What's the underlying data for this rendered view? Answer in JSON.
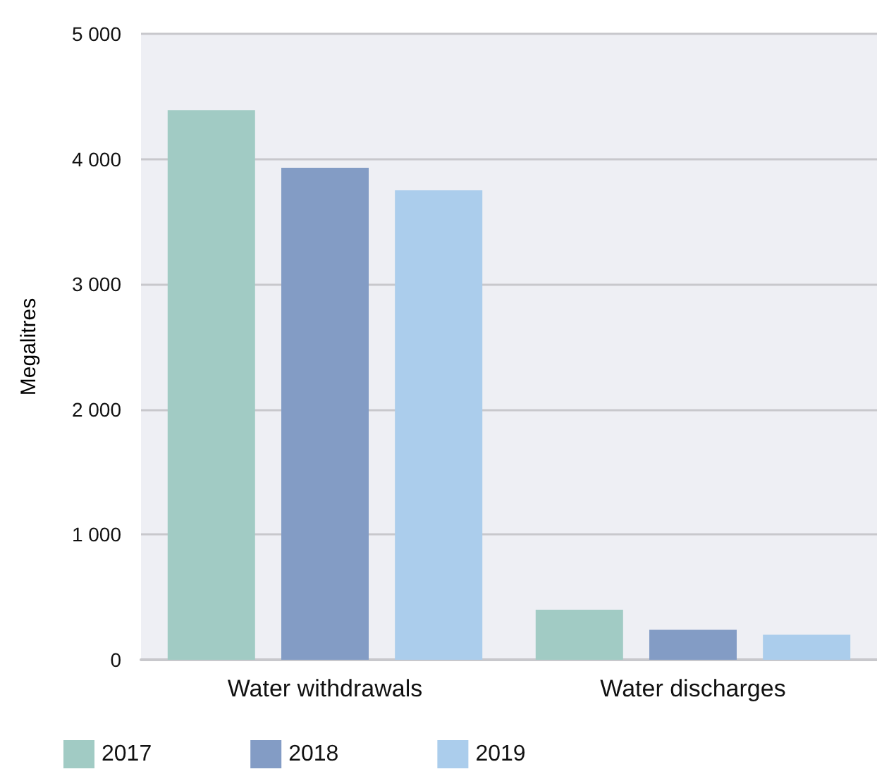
{
  "chart_data": {
    "type": "bar",
    "ylabel": "Megalitres",
    "categories": [
      "Water withdrawals",
      "Water discharges"
    ],
    "series": [
      {
        "name": "2017",
        "color": "#a1cbc4",
        "values": [
          4390,
          400
        ]
      },
      {
        "name": "2018",
        "color": "#839cc5",
        "values": [
          3930,
          240
        ]
      },
      {
        "name": "2019",
        "color": "#abcdec",
        "values": [
          3750,
          200
        ]
      }
    ],
    "ylim": [
      0,
      5000
    ],
    "yticks": [
      {
        "value": 0,
        "label": "0"
      },
      {
        "value": 1000,
        "label": "1 000"
      },
      {
        "value": 2000,
        "label": "2 000"
      },
      {
        "value": 3000,
        "label": "3 000"
      },
      {
        "value": 4000,
        "label": "4 000"
      },
      {
        "value": 5000,
        "label": "5 000"
      }
    ],
    "grid": "y",
    "legend": "bottom left"
  }
}
